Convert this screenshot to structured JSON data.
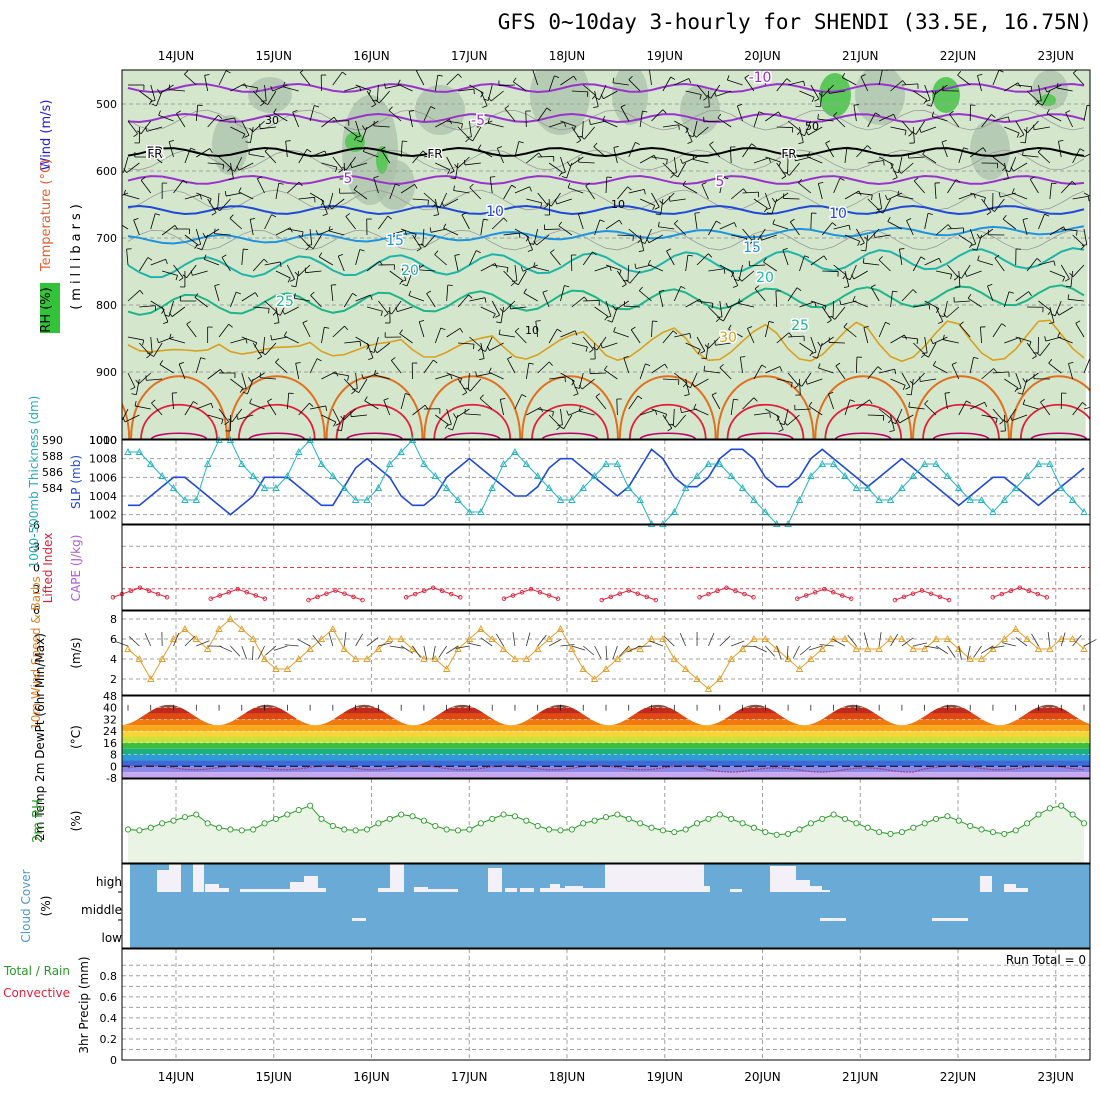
{
  "title": "GFS 0~10day 3-hourly for SHENDI (33.5E, 16.75N)",
  "dates": [
    "14JUN",
    "15JUN",
    "16JUN",
    "17JUN",
    "18JUN",
    "19JUN",
    "20JUN",
    "21JUN",
    "22JUN",
    "23JUN"
  ],
  "colors": {
    "purple": "#9933cc",
    "blue": "#1f49d6",
    "lightblue": "#1f93e0",
    "teal": "#1fb4a8",
    "green": "#1fb48a",
    "orange": "#d9a020",
    "darkorange": "#e07020",
    "red": "#e0203a",
    "cloud": "#6aaad6",
    "rhfill": "#e9f4e5",
    "rhline": "#2a9a2a"
  },
  "panels": {
    "profile": {
      "ylabel_wind": "Wind (m/s)",
      "ylabel_temp": "Temperature (°C)",
      "ylabel_rh": "RH (%)",
      "ylabel_mb": "(millibars)",
      "pressure_ticks": [
        "500",
        "600",
        "700",
        "800",
        "900",
        "1000"
      ],
      "isotherm_labels": [
        "-10",
        "-5",
        "FR",
        "5",
        "10",
        "15",
        "20",
        "25",
        "30"
      ],
      "rh_labels": [
        "30",
        "50",
        "10",
        "10"
      ],
      "fr_labels": [
        "FR",
        "FR",
        "FR"
      ]
    },
    "thickness": {
      "ylabel_left": "1000-500mb Thickness (dm)",
      "ylabel_right": "SLP (mb)",
      "left_ticks": [
        "590",
        "588",
        "586",
        "584"
      ],
      "right_ticks": [
        "1010",
        "1008",
        "1006",
        "1004",
        "1002"
      ]
    },
    "lifted": {
      "ylabel_left": "Lifted Index",
      "ylabel_right": "CAPE (J/kg)",
      "ticks": [
        "-6",
        "-3",
        "0",
        "3",
        "6"
      ]
    },
    "wind10": {
      "ylabel": "10m Wind Speed & Barbs",
      "unit": "(m/s)",
      "ticks": [
        "8",
        "6",
        "4",
        "2"
      ]
    },
    "temp2m": {
      "ylabel": "2m Temp 2m DewPt (6hr Min/Max)",
      "unit": "(°C)",
      "ticks": [
        "48",
        "40",
        "32",
        "24",
        "16",
        "8",
        "0",
        "-8"
      ]
    },
    "rh2m": {
      "ylabel": "2m RH",
      "unit": "(%)"
    },
    "cloud": {
      "ylabel": "Cloud Cover",
      "unit": "(%)",
      "levels": [
        "high",
        "middle",
        "low"
      ]
    },
    "precip": {
      "ylabel_a": "Total / Rain",
      "ylabel_b": "Convective",
      "ylabel_c": "3hr Precip (mm)",
      "ticks": [
        "0.8",
        "0.6",
        "0.4",
        "0.2",
        "0"
      ],
      "run_total": "Run Total = 0"
    }
  },
  "chart_data": [
    {
      "type": "line",
      "name": "1000-500mb Thickness",
      "ylim": [
        583,
        590
      ],
      "values": [
        589,
        589,
        588,
        587,
        586,
        585,
        585,
        588,
        590,
        590,
        588,
        587,
        586,
        586,
        587,
        589,
        590,
        588,
        587,
        586,
        585,
        585,
        586,
        588,
        589,
        590,
        588,
        587,
        586,
        585,
        584,
        584,
        586,
        588,
        589,
        588,
        587,
        586,
        585,
        585,
        586,
        587,
        588,
        588,
        586,
        585,
        583,
        583,
        584,
        586,
        587,
        588,
        588,
        587,
        586,
        585,
        584,
        583,
        583,
        585,
        587,
        588,
        588,
        587,
        586,
        586,
        585,
        585,
        586,
        587,
        588,
        588,
        587,
        586,
        585,
        585,
        584,
        585,
        586,
        587,
        588,
        588,
        586,
        585,
        584
      ]
    },
    {
      "type": "line",
      "name": "SLP",
      "ylim": [
        1001,
        1010
      ],
      "values": [
        1003,
        1003,
        1004,
        1005,
        1006,
        1006,
        1005,
        1004,
        1003,
        1002,
        1003,
        1004,
        1006,
        1006,
        1006,
        1005,
        1004,
        1003,
        1003,
        1005,
        1007,
        1008,
        1007,
        1006,
        1004,
        1003,
        1003,
        1004,
        1006,
        1007,
        1008,
        1007,
        1006,
        1005,
        1004,
        1004,
        1005,
        1007,
        1008,
        1008,
        1007,
        1006,
        1005,
        1004,
        1005,
        1007,
        1009,
        1008,
        1006,
        1005,
        1005,
        1006,
        1008,
        1009,
        1009,
        1008,
        1006,
        1005,
        1005,
        1006,
        1008,
        1009,
        1008,
        1007,
        1006,
        1005,
        1006,
        1007,
        1008,
        1007,
        1006,
        1005,
        1004,
        1003,
        1004,
        1005,
        1006,
        1006,
        1005,
        1004,
        1003,
        1004,
        1005,
        1006,
        1007
      ]
    },
    {
      "type": "line",
      "name": "2m RH",
      "ylim": [
        0,
        100
      ],
      "values": [
        38,
        37,
        40,
        45,
        48,
        52,
        55,
        45,
        40,
        38,
        37,
        38,
        45,
        50,
        55,
        60,
        65,
        50,
        42,
        38,
        37,
        38,
        45,
        50,
        55,
        53,
        48,
        42,
        38,
        37,
        38,
        45,
        50,
        55,
        53,
        48,
        42,
        38,
        37,
        38,
        45,
        48,
        52,
        55,
        50,
        45,
        40,
        37,
        35,
        38,
        45,
        50,
        55,
        50,
        45,
        40,
        35,
        32,
        33,
        38,
        45,
        50,
        55,
        50,
        45,
        40,
        35,
        33,
        35,
        40,
        45,
        50,
        53,
        48,
        42,
        38,
        35,
        33,
        37,
        45,
        55,
        62,
        65,
        55,
        45
      ]
    },
    {
      "type": "line",
      "name": "10m Wind Speed",
      "ylim": [
        0,
        8
      ],
      "values": [
        5,
        4,
        2,
        4,
        6,
        7,
        6,
        5,
        7,
        8,
        7,
        6,
        4,
        3,
        3,
        4,
        5,
        6,
        7,
        5,
        4,
        4,
        5,
        6,
        6,
        5,
        4,
        4,
        3,
        5,
        6,
        7,
        6,
        5,
        4,
        4,
        5,
        6,
        7,
        5,
        3,
        2,
        3,
        4,
        5,
        5,
        6,
        6,
        4,
        3,
        2,
        1,
        2,
        4,
        5,
        6,
        6,
        5,
        4,
        3,
        4,
        5,
        6,
        6,
        5,
        5,
        5,
        6,
        6,
        5,
        5,
        6,
        6,
        5,
        4,
        4,
        5,
        6,
        7,
        6,
        5,
        5,
        6,
        6,
        5
      ]
    }
  ]
}
